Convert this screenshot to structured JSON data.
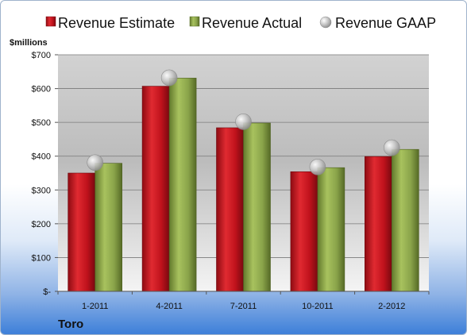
{
  "chart_data": {
    "type": "bar",
    "company": "Toro",
    "units_label": "$millions",
    "categories": [
      "1-2011",
      "4-2011",
      "7-2011",
      "10-2011",
      "2-2012"
    ],
    "series": [
      {
        "name": "Revenue Estimate",
        "kind": "bar",
        "color": "#c0121c",
        "values": [
          350,
          607,
          484,
          354,
          399
        ]
      },
      {
        "name": "Revenue Actual",
        "kind": "bar",
        "color": "#8aa44a",
        "values": [
          379,
          631,
          498,
          366,
          420
        ]
      },
      {
        "name": "Revenue GAAP",
        "kind": "marker",
        "color": "#b9b9b9",
        "values": [
          381,
          632,
          502,
          368,
          425
        ]
      }
    ],
    "y_ticks": [
      {
        "value": 0,
        "label": "$-"
      },
      {
        "value": 100,
        "label": "$100"
      },
      {
        "value": 200,
        "label": "$200"
      },
      {
        "value": 300,
        "label": "$300"
      },
      {
        "value": 400,
        "label": "$400"
      },
      {
        "value": 500,
        "label": "$500"
      },
      {
        "value": 600,
        "label": "$600"
      },
      {
        "value": 700,
        "label": "$700"
      }
    ],
    "ylim": [
      0,
      700
    ],
    "grid": true,
    "legend_position": "top"
  }
}
